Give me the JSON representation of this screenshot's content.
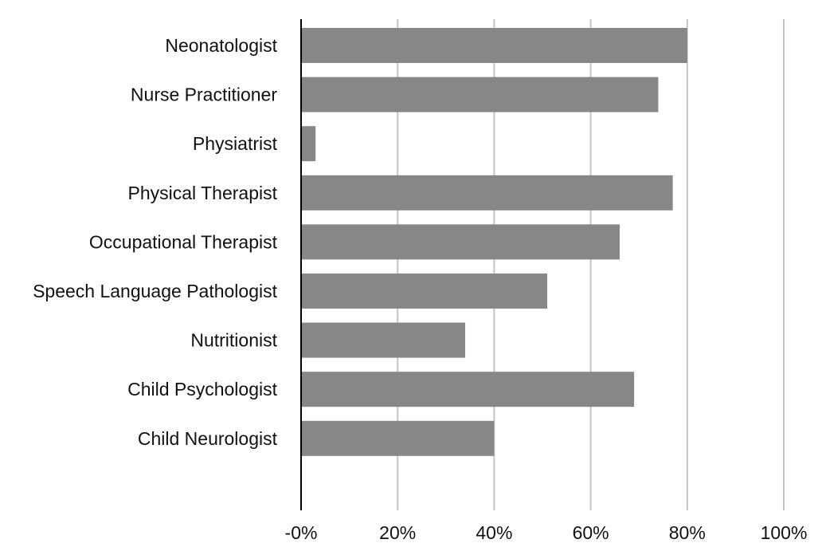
{
  "chart_data": {
    "type": "bar",
    "orientation": "horizontal",
    "title": "",
    "xlabel": "",
    "ylabel": "",
    "categories": [
      "Neonatologist",
      "Nurse Practitioner",
      "Physiatrist",
      "Physical Therapist",
      "Occupational Therapist",
      "Speech Language Pathologist",
      "Nutritionist",
      "Child Psychologist",
      "Child Neurologist"
    ],
    "values": [
      80,
      74,
      3,
      77,
      66,
      51,
      34,
      69,
      40
    ],
    "xlim": [
      0,
      100
    ],
    "ticks": [
      0,
      20,
      40,
      60,
      80,
      100
    ],
    "tick_labels": [
      "-0%",
      "20%",
      "40%",
      "60%",
      "80%",
      "100%"
    ],
    "grid": "vertical",
    "legend": "none",
    "bar_color": "#878787",
    "grid_color": "#c4c4c4",
    "axis_color": "#000000"
  }
}
